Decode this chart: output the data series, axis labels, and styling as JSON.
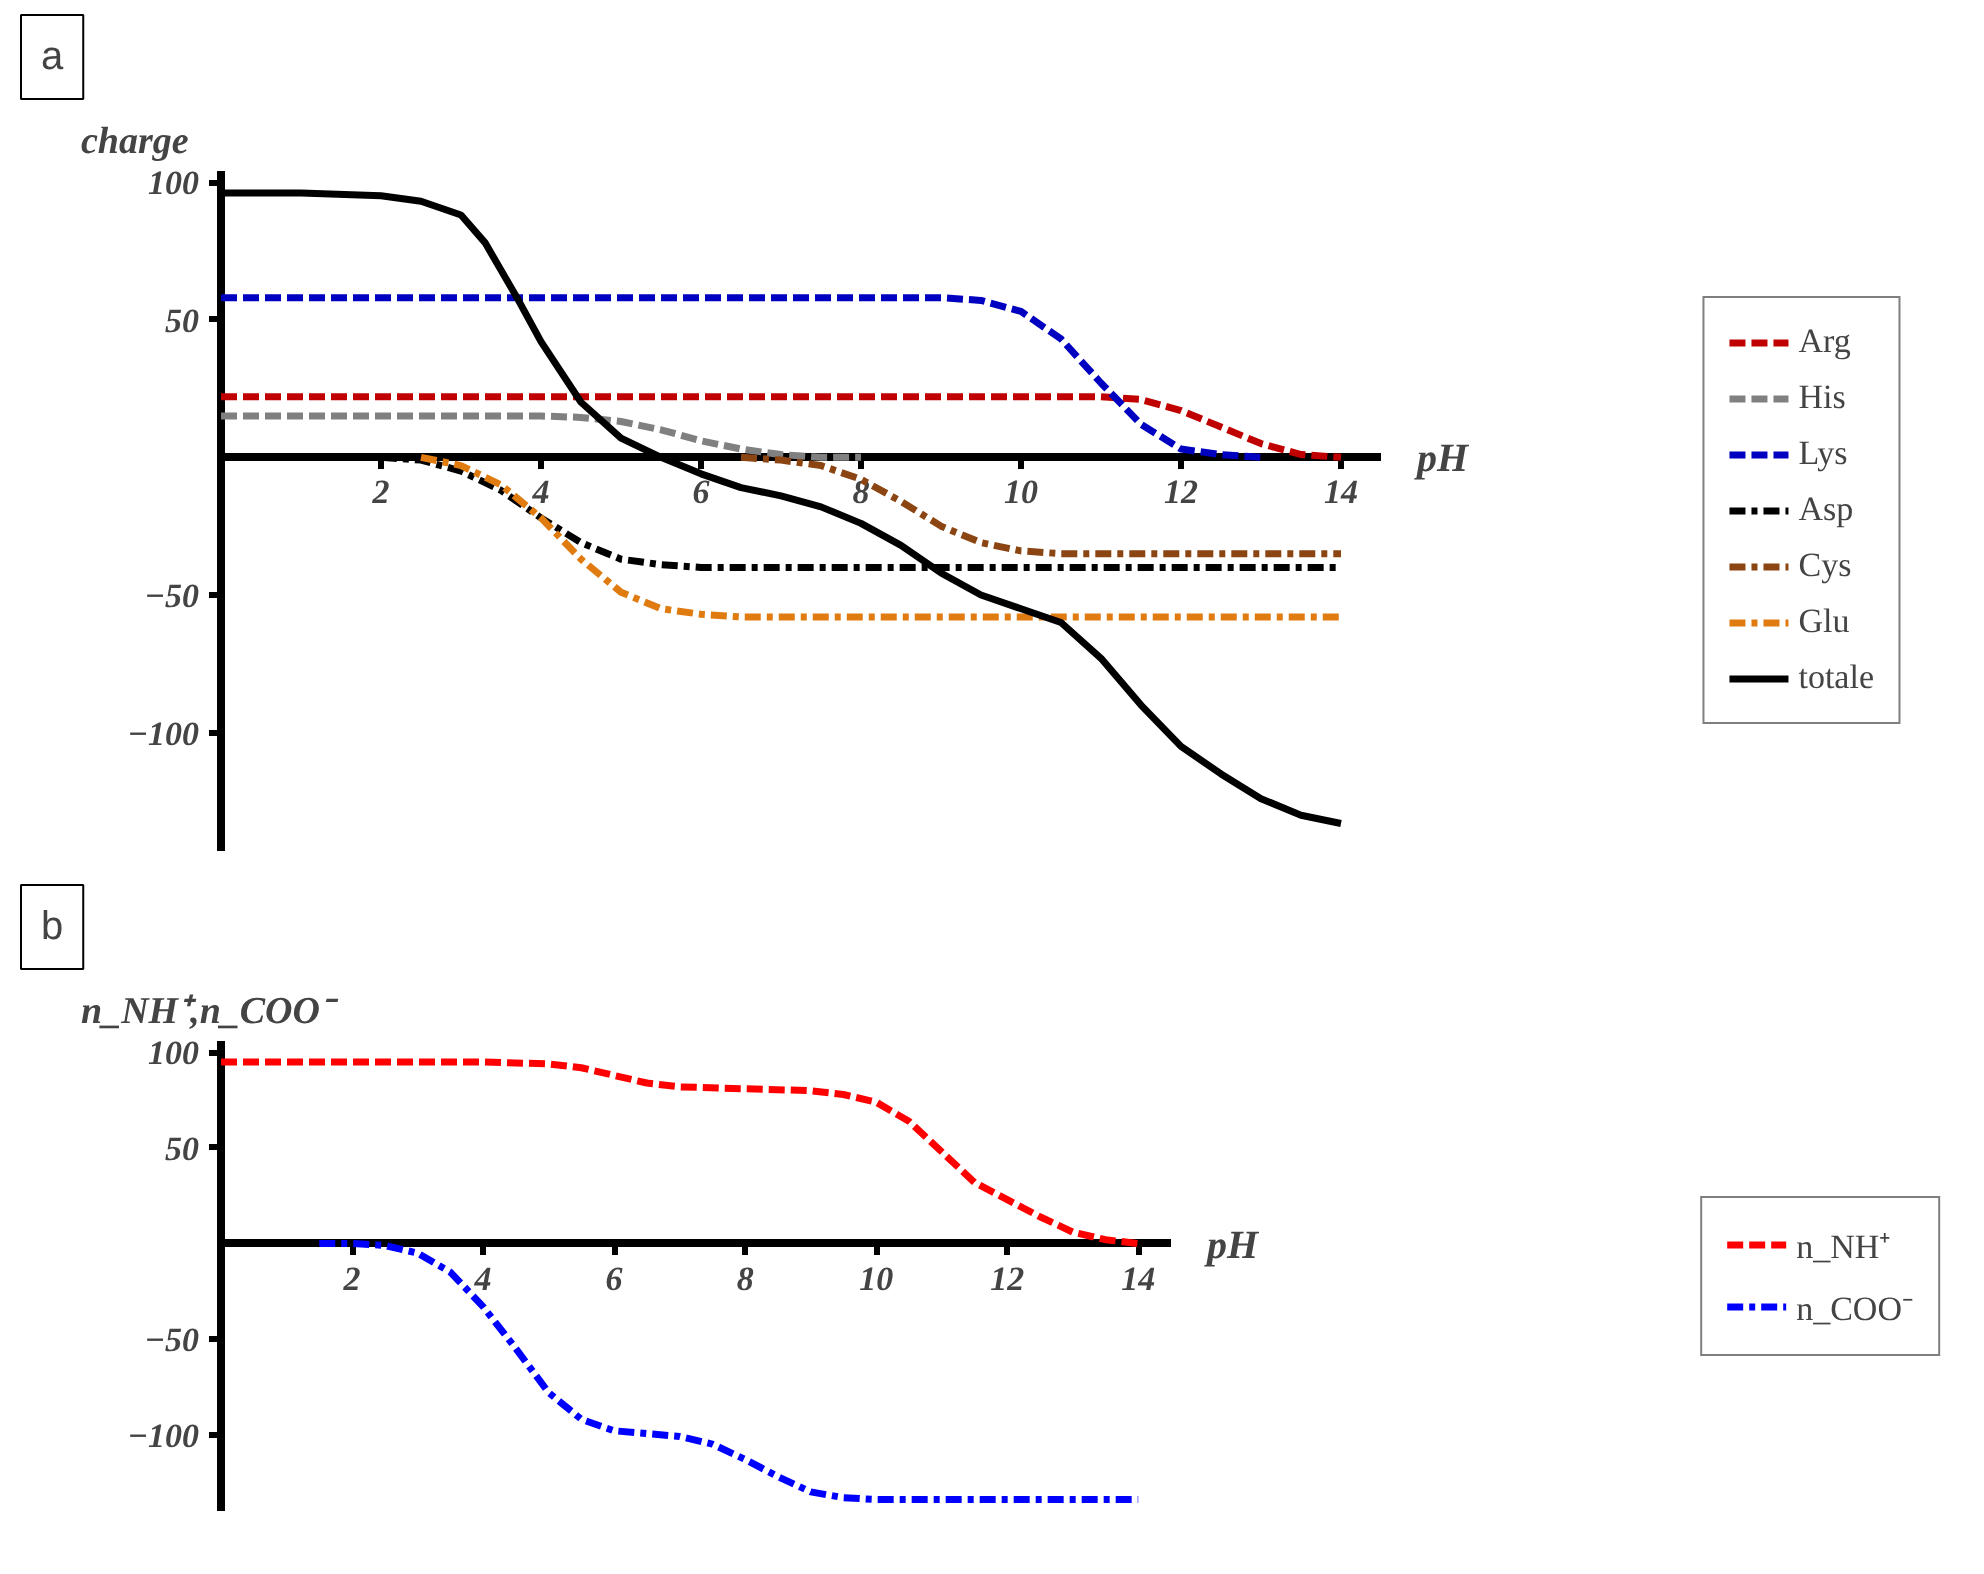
{
  "chart_data": [
    {
      "type": "line",
      "annotations": [
        "a"
      ],
      "xlabel": "pH",
      "ylabel": "charge",
      "xlim": [
        0,
        14.5
      ],
      "ylim": [
        -143,
        104
      ],
      "xticks": [
        2,
        4,
        6,
        8,
        10,
        12,
        14
      ],
      "yticks": [
        -100,
        -50,
        50,
        100
      ],
      "grid": false,
      "legend": "right",
      "marker": "none",
      "series": [
        {
          "name": "Arg",
          "color": "#c00000",
          "line_style": "dashed",
          "x": [
            0,
            2,
            4,
            6,
            8,
            10,
            11,
            11.5,
            12,
            12.5,
            13,
            13.5,
            14
          ],
          "values": [
            22,
            22,
            22,
            22,
            22,
            22,
            22,
            21,
            17,
            11,
            5,
            1,
            0
          ]
        },
        {
          "name": "His",
          "color": "#808080",
          "line_style": "dashed",
          "x": [
            0,
            2,
            4,
            4.5,
            5,
            5.5,
            6,
            6.5,
            7,
            7.5,
            8
          ],
          "values": [
            15,
            15,
            15,
            14.5,
            13,
            10,
            6,
            3,
            1,
            0,
            0
          ]
        },
        {
          "name": "Lys",
          "color": "#0000c0",
          "line_style": "dashed",
          "x": [
            0,
            2,
            4,
            6,
            8,
            9,
            9.5,
            10,
            10.5,
            11,
            11.5,
            12,
            12.5,
            13
          ],
          "values": [
            58,
            58,
            58,
            58,
            58,
            58,
            57,
            53,
            43,
            27,
            12,
            3,
            1,
            0
          ]
        },
        {
          "name": "Asp",
          "color": "#000000",
          "line_style": "dashdot",
          "x": [
            2,
            2.5,
            3,
            3.5,
            4,
            4.5,
            5,
            5.5,
            6,
            7,
            8,
            10,
            12,
            14
          ],
          "values": [
            0,
            -1,
            -5,
            -12,
            -22,
            -31,
            -37,
            -39,
            -40,
            -40,
            -40,
            -40,
            -40,
            -40
          ]
        },
        {
          "name": "Cys",
          "color": "#8b4513",
          "line_style": "dashdot",
          "x": [
            6.5,
            7,
            7.5,
            8,
            8.5,
            9,
            9.5,
            10,
            10.5,
            11,
            12,
            14
          ],
          "values": [
            0,
            -1,
            -3,
            -8,
            -16,
            -25,
            -31,
            -34,
            -35,
            -35,
            -35,
            -35
          ]
        },
        {
          "name": "Glu",
          "color": "#e07b10",
          "line_style": "dashdot",
          "x": [
            2.5,
            3,
            3.5,
            4,
            4.5,
            5,
            5.5,
            6,
            6.5,
            7,
            8,
            10,
            12,
            14
          ],
          "values": [
            0,
            -3,
            -10,
            -22,
            -37,
            -49,
            -55,
            -57,
            -58,
            -58,
            -58,
            -58,
            -58,
            -58
          ]
        },
        {
          "name": "totale",
          "color": "#000000",
          "line_style": "solid",
          "x": [
            0,
            1,
            2,
            2.5,
            3,
            3.3,
            3.7,
            4,
            4.5,
            5,
            5.5,
            6,
            6.5,
            7,
            7.5,
            8,
            8.5,
            9,
            9.5,
            10,
            10.5,
            11,
            11.5,
            12,
            12.5,
            13,
            13.5,
            14
          ],
          "values": [
            96,
            96,
            95,
            93,
            88,
            78,
            58,
            42,
            20,
            7,
            0,
            -6,
            -11,
            -14,
            -18,
            -24,
            -32,
            -42,
            -50,
            -55,
            -60,
            -73,
            -90,
            -105,
            -115,
            -124,
            -130,
            -133
          ]
        }
      ]
    },
    {
      "type": "line",
      "annotations": [
        "b"
      ],
      "xlabel": "pH",
      "ylabel": "n_NH⁺,n_COO⁻",
      "xlim": [
        0,
        14.5
      ],
      "ylim": [
        -140,
        106
      ],
      "xticks": [
        2,
        4,
        6,
        8,
        10,
        12,
        14
      ],
      "yticks": [
        -100,
        -50,
        50,
        100
      ],
      "grid": false,
      "legend": "right",
      "marker": "none",
      "series": [
        {
          "name": "n_NH⁺",
          "color": "#ff0000",
          "line_style": "dashed",
          "x": [
            0,
            2,
            4,
            5,
            5.5,
            6,
            6.5,
            7,
            8,
            9,
            9.5,
            10,
            10.5,
            11,
            11.5,
            12,
            12.5,
            13,
            13.5,
            14
          ],
          "values": [
            95,
            95,
            95,
            94,
            92,
            88,
            84,
            82,
            81,
            80,
            78,
            74,
            64,
            48,
            32,
            23,
            14,
            6,
            2,
            0
          ]
        },
        {
          "name": "n_COO⁻",
          "color": "#0000ff",
          "line_style": "dashdot",
          "x": [
            1.5,
            2,
            2.5,
            3,
            3.5,
            4,
            4.5,
            5,
            5.5,
            6,
            7,
            7.5,
            8,
            8.5,
            9,
            9.5,
            10,
            11,
            12,
            14
          ],
          "values": [
            0,
            0,
            -1,
            -5,
            -15,
            -33,
            -55,
            -78,
            -92,
            -98,
            -101,
            -105,
            -113,
            -122,
            -130,
            -133,
            -134,
            -134,
            -134,
            -134
          ]
        }
      ]
    }
  ]
}
